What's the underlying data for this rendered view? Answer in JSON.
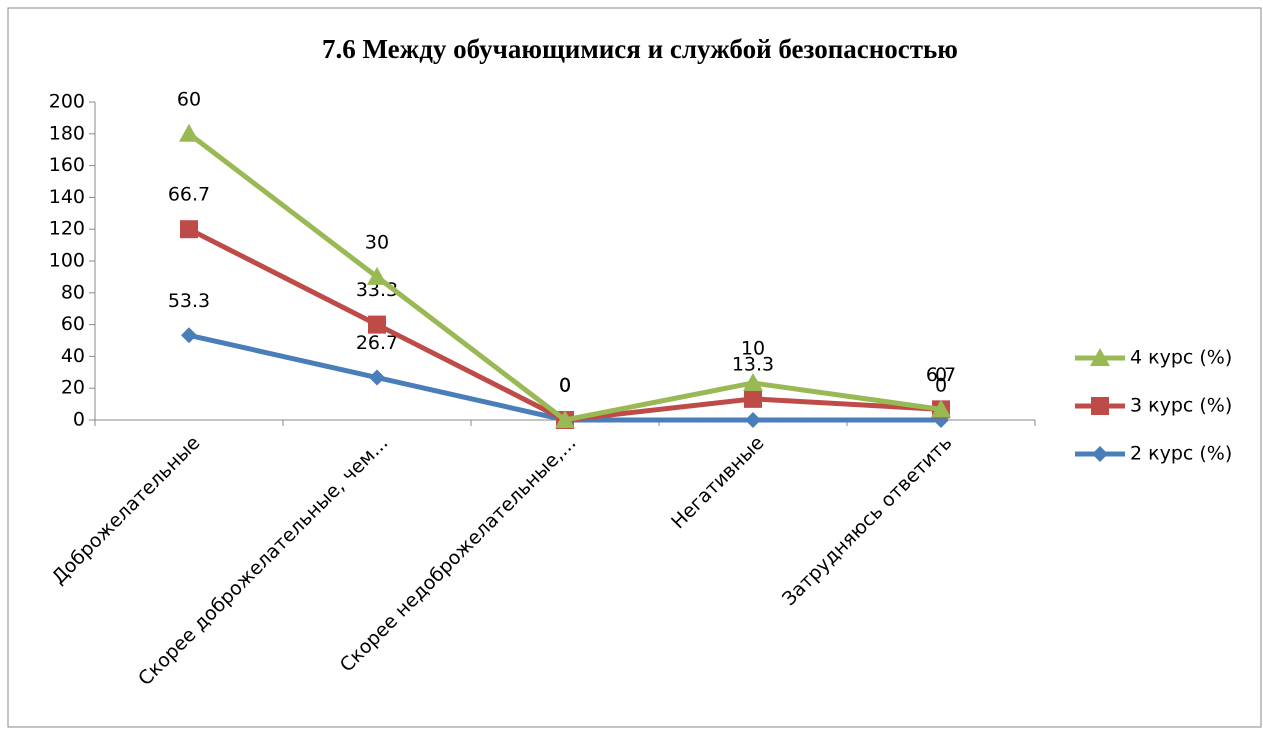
{
  "chart_data": {
    "type": "stacked_line",
    "title": "7.6 Между обучающимися и службой безопасностью",
    "categories": [
      "Доброжелательные",
      "Скорее доброжелательные, чем...",
      "Скорее недоброжелательные,...",
      "Негативные",
      "Затрудняюсь ответить"
    ],
    "series": [
      {
        "name": "2 курс (%)",
        "color": "#4a7ebb",
        "marker": "diamond",
        "values": [
          53.3,
          26.7,
          0,
          0,
          0
        ]
      },
      {
        "name": "3 курс (%)",
        "color": "#be4b48",
        "marker": "square",
        "values": [
          66.7,
          33.3,
          0,
          13.3,
          6.7
        ]
      },
      {
        "name": "4 курс (%)",
        "color": "#98b954",
        "marker": "triangle",
        "values": [
          60,
          30,
          0,
          10,
          0
        ]
      }
    ],
    "ylim": [
      0,
      200
    ],
    "yticks": [
      0,
      20,
      40,
      60,
      80,
      100,
      120,
      140,
      160,
      180,
      200
    ],
    "grid": false,
    "legend": "right"
  }
}
